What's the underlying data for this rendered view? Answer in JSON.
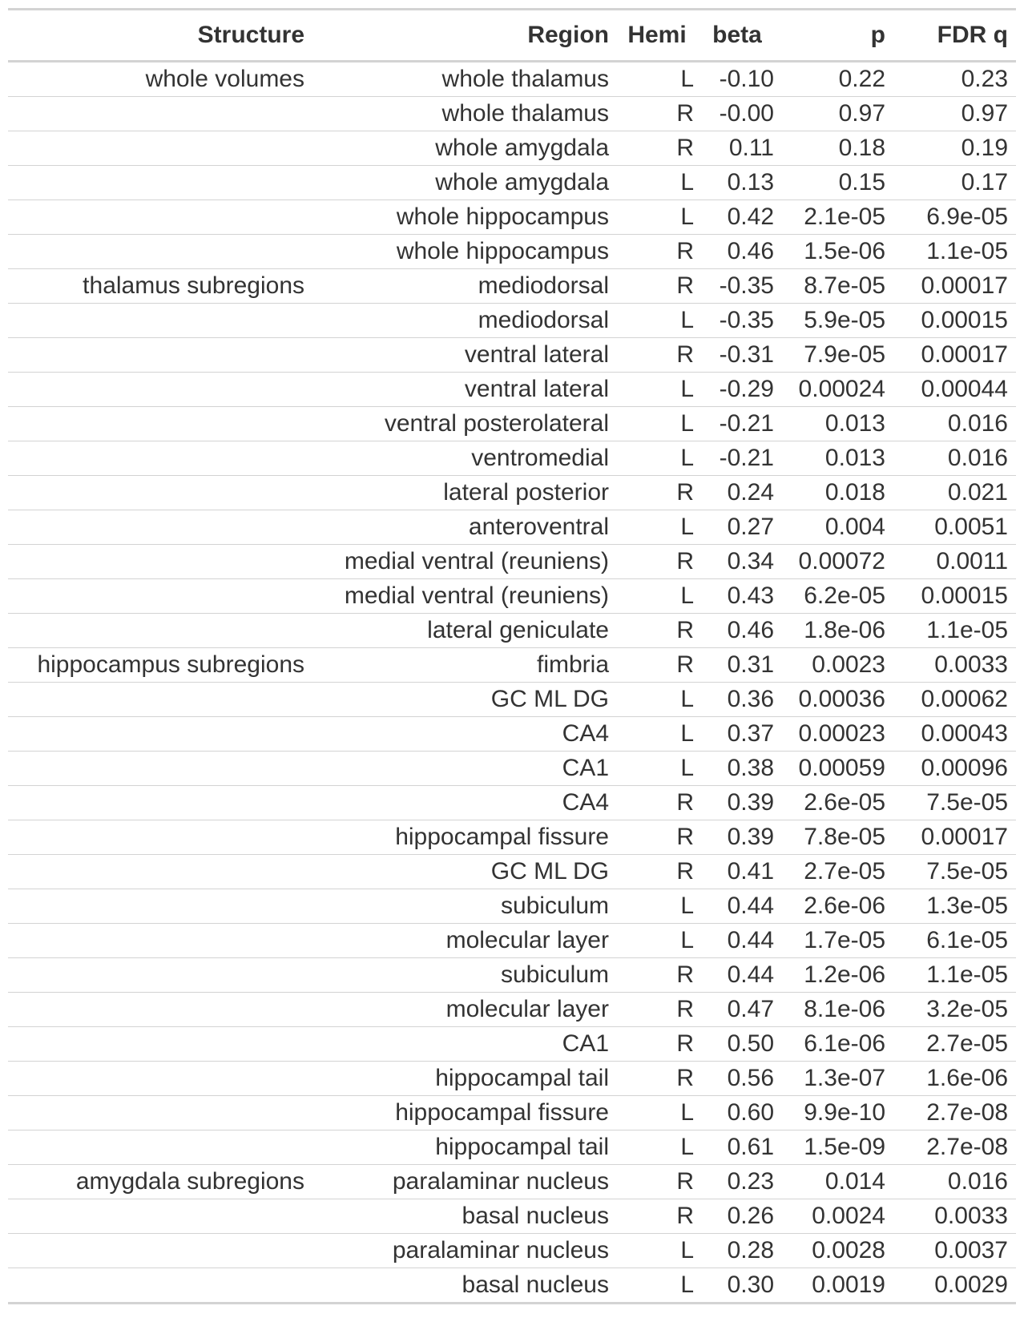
{
  "table": {
    "headers": {
      "structure": "Structure",
      "region": "Region",
      "hemi": "Hemi",
      "beta": "beta",
      "p": "p",
      "fdr_q": "FDR q"
    },
    "rows": [
      {
        "structure": "whole volumes",
        "region": "whole thalamus",
        "hemi": "L",
        "beta": "-0.10",
        "p": "0.22",
        "q": "0.23"
      },
      {
        "structure": "",
        "region": "whole thalamus",
        "hemi": "R",
        "beta": "-0.00",
        "p": "0.97",
        "q": "0.97"
      },
      {
        "structure": "",
        "region": "whole amygdala",
        "hemi": "R",
        "beta": "0.11",
        "p": "0.18",
        "q": "0.19"
      },
      {
        "structure": "",
        "region": "whole amygdala",
        "hemi": "L",
        "beta": "0.13",
        "p": "0.15",
        "q": "0.17"
      },
      {
        "structure": "",
        "region": "whole hippocampus",
        "hemi": "L",
        "beta": "0.42",
        "p": "2.1e-05",
        "q": "6.9e-05"
      },
      {
        "structure": "",
        "region": "whole hippocampus",
        "hemi": "R",
        "beta": "0.46",
        "p": "1.5e-06",
        "q": "1.1e-05"
      },
      {
        "structure": "thalamus subregions",
        "region": "mediodorsal",
        "hemi": "R",
        "beta": "-0.35",
        "p": "8.7e-05",
        "q": "0.00017"
      },
      {
        "structure": "",
        "region": "mediodorsal",
        "hemi": "L",
        "beta": "-0.35",
        "p": "5.9e-05",
        "q": "0.00015"
      },
      {
        "structure": "",
        "region": "ventral lateral",
        "hemi": "R",
        "beta": "-0.31",
        "p": "7.9e-05",
        "q": "0.00017"
      },
      {
        "structure": "",
        "region": "ventral lateral",
        "hemi": "L",
        "beta": "-0.29",
        "p": "0.00024",
        "q": "0.00044"
      },
      {
        "structure": "",
        "region": "ventral posterolateral",
        "hemi": "L",
        "beta": "-0.21",
        "p": "0.013",
        "q": "0.016"
      },
      {
        "structure": "",
        "region": "ventromedial",
        "hemi": "L",
        "beta": "-0.21",
        "p": "0.013",
        "q": "0.016"
      },
      {
        "structure": "",
        "region": "lateral posterior",
        "hemi": "R",
        "beta": "0.24",
        "p": "0.018",
        "q": "0.021"
      },
      {
        "structure": "",
        "region": "anteroventral",
        "hemi": "L",
        "beta": "0.27",
        "p": "0.004",
        "q": "0.0051"
      },
      {
        "structure": "",
        "region": "medial ventral (reuniens)",
        "hemi": "R",
        "beta": "0.34",
        "p": "0.00072",
        "q": "0.0011"
      },
      {
        "structure": "",
        "region": "medial ventral (reuniens)",
        "hemi": "L",
        "beta": "0.43",
        "p": "6.2e-05",
        "q": "0.00015"
      },
      {
        "structure": "",
        "region": "lateral geniculate",
        "hemi": "R",
        "beta": "0.46",
        "p": "1.8e-06",
        "q": "1.1e-05"
      },
      {
        "structure": "hippocampus subregions",
        "region": "fimbria",
        "hemi": "R",
        "beta": "0.31",
        "p": "0.0023",
        "q": "0.0033"
      },
      {
        "structure": "",
        "region": "GC ML DG",
        "hemi": "L",
        "beta": "0.36",
        "p": "0.00036",
        "q": "0.00062"
      },
      {
        "structure": "",
        "region": "CA4",
        "hemi": "L",
        "beta": "0.37",
        "p": "0.00023",
        "q": "0.00043"
      },
      {
        "structure": "",
        "region": "CA1",
        "hemi": "L",
        "beta": "0.38",
        "p": "0.00059",
        "q": "0.00096"
      },
      {
        "structure": "",
        "region": "CA4",
        "hemi": "R",
        "beta": "0.39",
        "p": "2.6e-05",
        "q": "7.5e-05"
      },
      {
        "structure": "",
        "region": "hippocampal fissure",
        "hemi": "R",
        "beta": "0.39",
        "p": "7.8e-05",
        "q": "0.00017"
      },
      {
        "structure": "",
        "region": "GC ML DG",
        "hemi": "R",
        "beta": "0.41",
        "p": "2.7e-05",
        "q": "7.5e-05"
      },
      {
        "structure": "",
        "region": "subiculum",
        "hemi": "L",
        "beta": "0.44",
        "p": "2.6e-06",
        "q": "1.3e-05"
      },
      {
        "structure": "",
        "region": "molecular layer",
        "hemi": "L",
        "beta": "0.44",
        "p": "1.7e-05",
        "q": "6.1e-05"
      },
      {
        "structure": "",
        "region": "subiculum",
        "hemi": "R",
        "beta": "0.44",
        "p": "1.2e-06",
        "q": "1.1e-05"
      },
      {
        "structure": "",
        "region": "molecular layer",
        "hemi": "R",
        "beta": "0.47",
        "p": "8.1e-06",
        "q": "3.2e-05"
      },
      {
        "structure": "",
        "region": "CA1",
        "hemi": "R",
        "beta": "0.50",
        "p": "6.1e-06",
        "q": "2.7e-05"
      },
      {
        "structure": "",
        "region": "hippocampal tail",
        "hemi": "R",
        "beta": "0.56",
        "p": "1.3e-07",
        "q": "1.6e-06"
      },
      {
        "structure": "",
        "region": "hippocampal fissure",
        "hemi": "L",
        "beta": "0.60",
        "p": "9.9e-10",
        "q": "2.7e-08"
      },
      {
        "structure": "",
        "region": "hippocampal tail",
        "hemi": "L",
        "beta": "0.61",
        "p": "1.5e-09",
        "q": "2.7e-08"
      },
      {
        "structure": "amygdala subregions",
        "region": "paralaminar nucleus",
        "hemi": "R",
        "beta": "0.23",
        "p": "0.014",
        "q": "0.016"
      },
      {
        "structure": "",
        "region": "basal nucleus",
        "hemi": "R",
        "beta": "0.26",
        "p": "0.0024",
        "q": "0.0033"
      },
      {
        "structure": "",
        "region": "paralaminar nucleus",
        "hemi": "L",
        "beta": "0.28",
        "p": "0.0028",
        "q": "0.0037"
      },
      {
        "structure": "",
        "region": "basal nucleus",
        "hemi": "L",
        "beta": "0.30",
        "p": "0.0019",
        "q": "0.0029"
      }
    ]
  },
  "colors": {
    "text": "#333333",
    "rule": "#d3d3d3",
    "background": "#ffffff"
  }
}
